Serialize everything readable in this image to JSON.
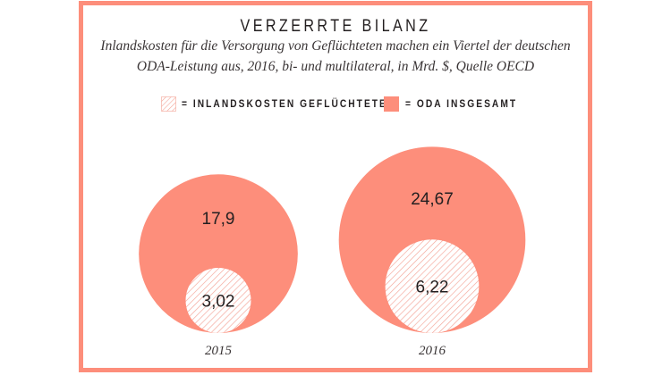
{
  "colors": {
    "oda": "#fd8e7b",
    "hatch": "#f4a497",
    "text": "#231f20"
  },
  "chart_data": {
    "type": "bubble",
    "title": "VERZERRTE BILANZ",
    "subtitle": [
      "Inlandskosten für die Versorgung von Geflüchteten machen ein Viertel der deutschen",
      "ODA-Leistung aus, 2016, bi- und multilateral, in Mrd. $, Quelle OECD"
    ],
    "legend": [
      {
        "label": "= INLANDSKOSTEN GEFLÜCHTETE",
        "style": "hatched"
      },
      {
        "label": "= ODA INSGESAMT",
        "style": "solid"
      }
    ],
    "categories": [
      "2015",
      "2016"
    ],
    "series": [
      {
        "name": "ODA INSGESAMT",
        "values": [
          17.9,
          24.67
        ],
        "labels": [
          "17,9",
          "24,67"
        ]
      },
      {
        "name": "INLANDSKOSTEN GEFLÜCHTETE",
        "values": [
          3.02,
          6.22
        ],
        "labels": [
          "3,02",
          "6,22"
        ]
      }
    ],
    "encoding": "circle area proportional to value, nested bottom-aligned"
  }
}
